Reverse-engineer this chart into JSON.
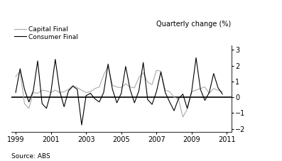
{
  "title": "Quarterly change (%)",
  "source": "Source: ABS",
  "legend_consumer": "Consumer Final",
  "legend_capital": "Capital Final",
  "ylim": [
    -2.2,
    3.3
  ],
  "yticks": [
    -2,
    -1,
    0,
    1,
    2,
    3
  ],
  "consumer_color": "#000000",
  "capital_color": "#aaaaaa",
  "background_color": "#ffffff",
  "zero_line_color": "#000000",
  "xlim": [
    1998.75,
    2011.25
  ],
  "xticks": [
    1999,
    2001,
    2003,
    2005,
    2007,
    2009,
    2011
  ],
  "consumer_final": [
    0.3,
    1.8,
    0.5,
    -0.3,
    0.4,
    2.3,
    -0.4,
    -0.7,
    0.3,
    2.4,
    0.4,
    -0.6,
    0.4,
    0.7,
    0.5,
    -1.75,
    0.1,
    0.25,
    -0.1,
    -0.3,
    0.3,
    2.1,
    0.5,
    -0.35,
    0.25,
    1.95,
    0.5,
    -0.35,
    0.4,
    2.2,
    -0.15,
    -0.45,
    0.35,
    1.6,
    0.3,
    -0.3,
    -0.85,
    -0.1,
    0.2,
    -0.7,
    0.35,
    2.5,
    0.5,
    -0.2,
    0.3,
    1.5,
    0.6,
    0.2
  ],
  "capital_final": [
    1.3,
    1.65,
    -0.4,
    -0.7,
    0.3,
    0.25,
    0.45,
    0.4,
    0.3,
    0.45,
    0.3,
    0.35,
    0.5,
    0.75,
    0.6,
    0.45,
    0.3,
    0.35,
    0.55,
    0.65,
    1.4,
    2.0,
    0.75,
    0.65,
    0.6,
    0.85,
    0.65,
    0.6,
    1.25,
    1.55,
    0.95,
    0.8,
    1.7,
    1.65,
    0.45,
    0.35,
    0.0,
    -0.1,
    -1.25,
    -0.75,
    0.35,
    0.45,
    0.55,
    0.65,
    0.25,
    0.55,
    0.45,
    0.35
  ]
}
